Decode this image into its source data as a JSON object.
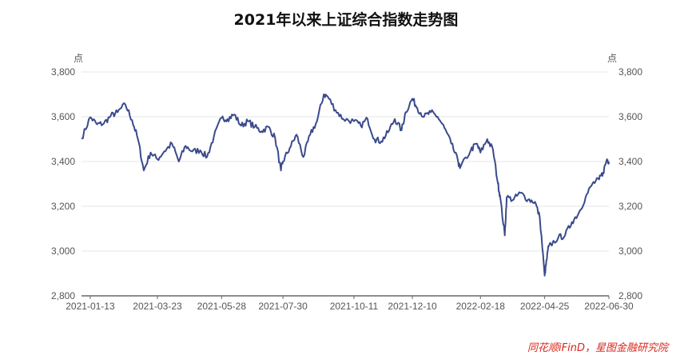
{
  "title": "2021年以来上证综合指数走势图",
  "source": "同花顺iFinD，星图金融研究院",
  "chart_data": {
    "type": "line",
    "ylabel_left": "点",
    "ylabel_right": "点",
    "ylim": [
      2800,
      3800
    ],
    "yticks": [
      2800,
      3000,
      3200,
      3400,
      3600,
      3800
    ],
    "ytick_labels": [
      "2,800",
      "3,000",
      "3,200",
      "3,400",
      "3,600",
      "3,800"
    ],
    "xticks": [
      "2021-01-13",
      "2021-03-23",
      "2021-05-28",
      "2021-07-30",
      "2021-10-11",
      "2021-12-10",
      "2022-02-18",
      "2022-04-25",
      "2022-06-30"
    ],
    "grid": true,
    "line_color": "#3a4a8c",
    "series": [
      {
        "name": "",
        "x": [
          "2021-01-04",
          "2021-01-13",
          "2021-01-20",
          "2021-01-27",
          "2021-02-03",
          "2021-02-10",
          "2021-02-18",
          "2021-02-25",
          "2021-03-03",
          "2021-03-09",
          "2021-03-16",
          "2021-03-23",
          "2021-03-30",
          "2021-04-07",
          "2021-04-14",
          "2021-04-21",
          "2021-04-28",
          "2021-05-06",
          "2021-05-13",
          "2021-05-20",
          "2021-05-28",
          "2021-06-03",
          "2021-06-10",
          "2021-06-17",
          "2021-06-24",
          "2021-07-01",
          "2021-07-08",
          "2021-07-15",
          "2021-07-22",
          "2021-07-28",
          "2021-07-30",
          "2021-08-06",
          "2021-08-13",
          "2021-08-20",
          "2021-08-27",
          "2021-09-03",
          "2021-09-10",
          "2021-09-14",
          "2021-09-22",
          "2021-09-30",
          "2021-10-11",
          "2021-10-18",
          "2021-10-25",
          "2021-11-01",
          "2021-11-08",
          "2021-11-15",
          "2021-11-22",
          "2021-11-29",
          "2021-12-03",
          "2021-12-10",
          "2021-12-15",
          "2021-12-22",
          "2021-12-29",
          "2022-01-05",
          "2022-01-12",
          "2022-01-19",
          "2022-01-26",
          "2022-01-28",
          "2022-02-08",
          "2022-02-14",
          "2022-02-18",
          "2022-02-25",
          "2022-03-03",
          "2022-03-08",
          "2022-03-10",
          "2022-03-15",
          "2022-03-17",
          "2022-03-24",
          "2022-03-31",
          "2022-04-08",
          "2022-04-15",
          "2022-04-20",
          "2022-04-25",
          "2022-04-27",
          "2022-04-29",
          "2022-05-09",
          "2022-05-16",
          "2022-05-23",
          "2022-05-30",
          "2022-06-06",
          "2022-06-13",
          "2022-06-20",
          "2022-06-24",
          "2022-06-28",
          "2022-06-30"
        ],
        "values": [
          3502,
          3598,
          3566,
          3570,
          3604,
          3620,
          3655,
          3585,
          3500,
          3360,
          3440,
          3410,
          3445,
          3480,
          3400,
          3470,
          3445,
          3450,
          3420,
          3510,
          3595,
          3590,
          3610,
          3560,
          3580,
          3555,
          3535,
          3555,
          3505,
          3360,
          3400,
          3460,
          3520,
          3420,
          3520,
          3580,
          3700,
          3690,
          3630,
          3590,
          3580,
          3560,
          3590,
          3500,
          3490,
          3530,
          3590,
          3540,
          3620,
          3680,
          3640,
          3600,
          3620,
          3600,
          3550,
          3480,
          3400,
          3370,
          3450,
          3480,
          3440,
          3500,
          3450,
          3300,
          3250,
          3070,
          3240,
          3230,
          3260,
          3230,
          3220,
          3150,
          2890,
          2960,
          3020,
          3060,
          3070,
          3130,
          3170,
          3240,
          3300,
          3320,
          3350,
          3410,
          3400
        ]
      }
    ]
  }
}
